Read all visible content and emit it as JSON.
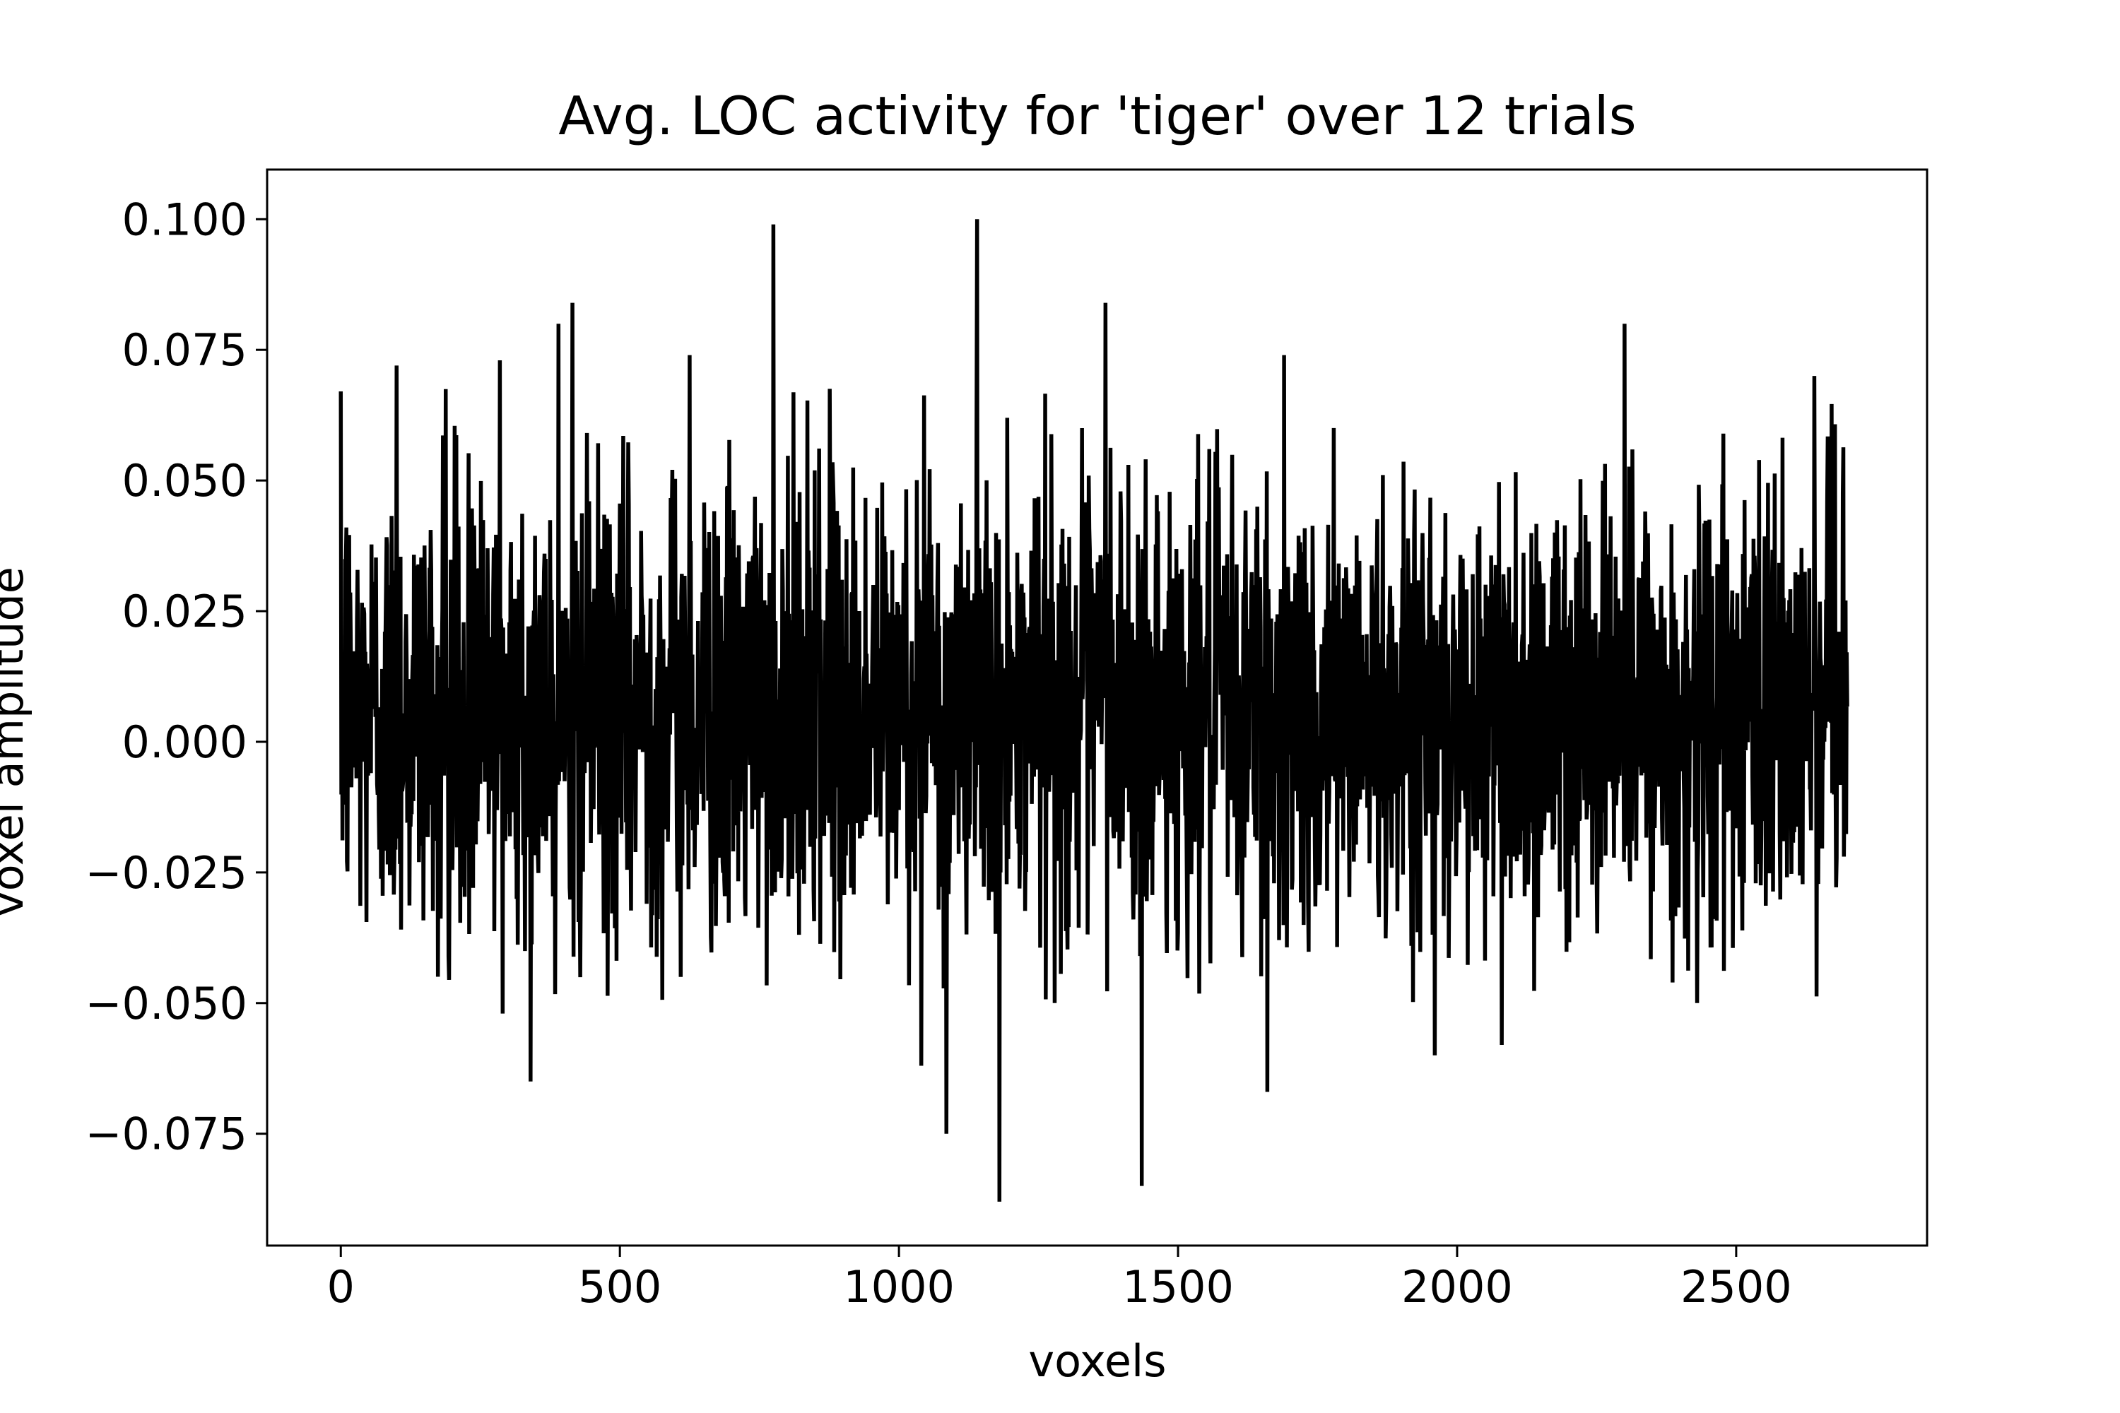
{
  "chart_data": {
    "type": "line",
    "title": "Avg. LOC activity for 'tiger' over 12 trials",
    "xlabel": "voxels",
    "ylabel": "voxel amplitude",
    "xlim": [
      -132,
      2842
    ],
    "ylim": [
      -0.0964,
      0.1095
    ],
    "x_ticks": [
      0,
      500,
      1000,
      1500,
      2000,
      2500
    ],
    "x_tick_labels": [
      "0",
      "500",
      "1000",
      "1500",
      "2000",
      "2500"
    ],
    "y_ticks": [
      -0.075,
      -0.05,
      -0.025,
      0.0,
      0.025,
      0.05,
      0.075,
      0.1
    ],
    "y_tick_labels": [
      "−0.075",
      "−0.050",
      "−0.025",
      "0.000",
      "0.025",
      "0.050",
      "0.075",
      "0.100"
    ],
    "grid": false,
    "legend": "none",
    "line_color": "#000000",
    "n_points": 2700,
    "series": [
      {
        "x_range": [
          0,
          2699
        ],
        "center": 0.006,
        "noise_std": 0.022,
        "extremes": [
          {
            "x": 10,
            "y": 0.041
          },
          {
            "x": 100,
            "y": 0.072
          },
          {
            "x": 285,
            "y": 0.073
          },
          {
            "x": 290,
            "y": -0.052
          },
          {
            "x": 340,
            "y": -0.065
          },
          {
            "x": 390,
            "y": 0.08
          },
          {
            "x": 415,
            "y": 0.084
          },
          {
            "x": 625,
            "y": 0.074
          },
          {
            "x": 775,
            "y": 0.099
          },
          {
            "x": 1040,
            "y": -0.062
          },
          {
            "x": 1085,
            "y": -0.075
          },
          {
            "x": 1140,
            "y": 0.1
          },
          {
            "x": 1180,
            "y": -0.088
          },
          {
            "x": 1370,
            "y": 0.084
          },
          {
            "x": 1435,
            "y": -0.085
          },
          {
            "x": 1660,
            "y": -0.067
          },
          {
            "x": 1690,
            "y": 0.074
          },
          {
            "x": 1960,
            "y": -0.06
          },
          {
            "x": 2080,
            "y": -0.058
          },
          {
            "x": 2300,
            "y": 0.08
          },
          {
            "x": 2430,
            "y": -0.05
          },
          {
            "x": 2640,
            "y": 0.07
          }
        ]
      }
    ]
  }
}
